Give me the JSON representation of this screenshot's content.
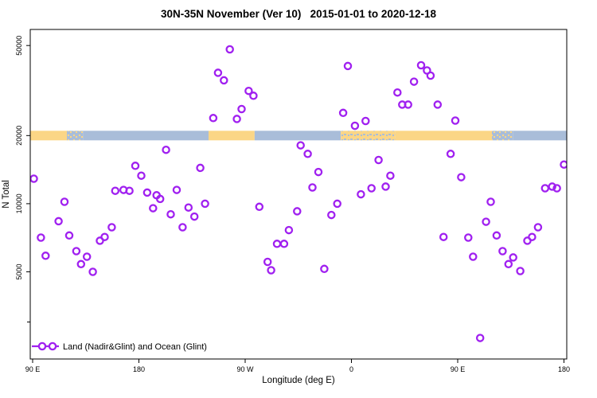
{
  "title": "30N-35N November (Ver 10)   2015-01-01 to 2020-12-18",
  "chart_data": {
    "type": "scatter",
    "title": "30N-35N November (Ver 10)   2015-01-01 to 2020-12-18",
    "xlabel": "Longitude (deg E)",
    "ylabel": "N Total",
    "legend_label": "Land (Nadir&Glint) and Ocean (Glint)",
    "legend_position": "bottom-left",
    "point_color": "#a020f0",
    "x_axis": {
      "description": "longitude wrapping eastward from 90E",
      "range_deg": [
        -2,
        452
      ],
      "ticks": [
        {
          "deg": 0,
          "label": "90 E"
        },
        {
          "deg": 90,
          "label": "180"
        },
        {
          "deg": 180,
          "label": "90 W"
        },
        {
          "deg": 270,
          "label": "0"
        },
        {
          "deg": 360,
          "label": "90 E"
        },
        {
          "deg": 450,
          "label": "180"
        }
      ]
    },
    "y_axis": {
      "scale": "log10",
      "range": [
        2300,
        58000
      ],
      "ticks": [
        50000,
        20000,
        10000,
        5000
      ],
      "minor_ticks": [
        3000
      ]
    },
    "map_band": {
      "center_value": 20000,
      "ocean_color": "#a9bdd9",
      "land_color": "#fbd686",
      "segments": [
        {
          "from": -2,
          "to": 29,
          "type": "land"
        },
        {
          "from": 29,
          "to": 43,
          "type": "islands"
        },
        {
          "from": 43,
          "to": 149,
          "type": "ocean"
        },
        {
          "from": 149,
          "to": 188,
          "type": "land"
        },
        {
          "from": 188,
          "to": 261,
          "type": "ocean"
        },
        {
          "from": 261,
          "to": 307,
          "type": "coast-mix"
        },
        {
          "from": 307,
          "to": 389,
          "type": "land"
        },
        {
          "from": 389,
          "to": 407,
          "type": "islands"
        },
        {
          "from": 407,
          "to": 452,
          "type": "ocean"
        }
      ]
    },
    "points": [
      [
        167,
        48100
      ],
      [
        157,
        37900
      ],
      [
        162,
        35100
      ],
      [
        183,
        31500
      ],
      [
        187,
        30000
      ],
      [
        177,
        26200
      ],
      [
        153,
        23900
      ],
      [
        173,
        23700
      ],
      [
        267,
        40600
      ],
      [
        263,
        25200
      ],
      [
        273,
        22100
      ],
      [
        282,
        23200
      ],
      [
        329,
        40900
      ],
      [
        334,
        38800
      ],
      [
        337,
        36800
      ],
      [
        323,
        34600
      ],
      [
        309,
        31000
      ],
      [
        313,
        27400
      ],
      [
        318,
        27400
      ],
      [
        343,
        27400
      ],
      [
        358,
        23300
      ],
      [
        113,
        17300
      ],
      [
        87,
        14700
      ],
      [
        92,
        13300
      ],
      [
        1,
        12900
      ],
      [
        142,
        14400
      ],
      [
        227,
        18100
      ],
      [
        233,
        16600
      ],
      [
        242,
        13800
      ],
      [
        293,
        15600
      ],
      [
        354,
        16600
      ],
      [
        303,
        13300
      ],
      [
        299,
        11900
      ],
      [
        363,
        13100
      ],
      [
        450,
        14900
      ],
      [
        237,
        11800
      ],
      [
        287,
        11700
      ],
      [
        278,
        11000
      ],
      [
        434,
        11700
      ],
      [
        440,
        11900
      ],
      [
        444,
        11700
      ],
      [
        70,
        11400
      ],
      [
        77,
        11500
      ],
      [
        82,
        11400
      ],
      [
        97,
        11200
      ],
      [
        105,
        10900
      ],
      [
        122,
        11500
      ],
      [
        27,
        10200
      ],
      [
        102,
        9550
      ],
      [
        108,
        10500
      ],
      [
        117,
        8980
      ],
      [
        127,
        7870
      ],
      [
        132,
        9620
      ],
      [
        146,
        10000
      ],
      [
        137,
        8770
      ],
      [
        22,
        8370
      ],
      [
        7,
        7080
      ],
      [
        31,
        7240
      ],
      [
        57,
        6860
      ],
      [
        61,
        7130
      ],
      [
        67,
        7870
      ],
      [
        11,
        5890
      ],
      [
        37,
        6170
      ],
      [
        46,
        5830
      ],
      [
        41,
        5410
      ],
      [
        51,
        5000
      ],
      [
        192,
        9690
      ],
      [
        224,
        9260
      ],
      [
        258,
        10000
      ],
      [
        253,
        8910
      ],
      [
        217,
        7640
      ],
      [
        207,
        6650
      ],
      [
        213,
        6650
      ],
      [
        199,
        5530
      ],
      [
        202,
        5080
      ],
      [
        247,
        5150
      ],
      [
        388,
        10200
      ],
      [
        384,
        8320
      ],
      [
        393,
        7240
      ],
      [
        348,
        7130
      ],
      [
        369,
        7080
      ],
      [
        419,
        6860
      ],
      [
        423,
        7130
      ],
      [
        428,
        7870
      ],
      [
        373,
        5830
      ],
      [
        398,
        6170
      ],
      [
        407,
        5790
      ],
      [
        403,
        5410
      ],
      [
        413,
        5040
      ],
      [
        379,
        2550
      ]
    ]
  }
}
